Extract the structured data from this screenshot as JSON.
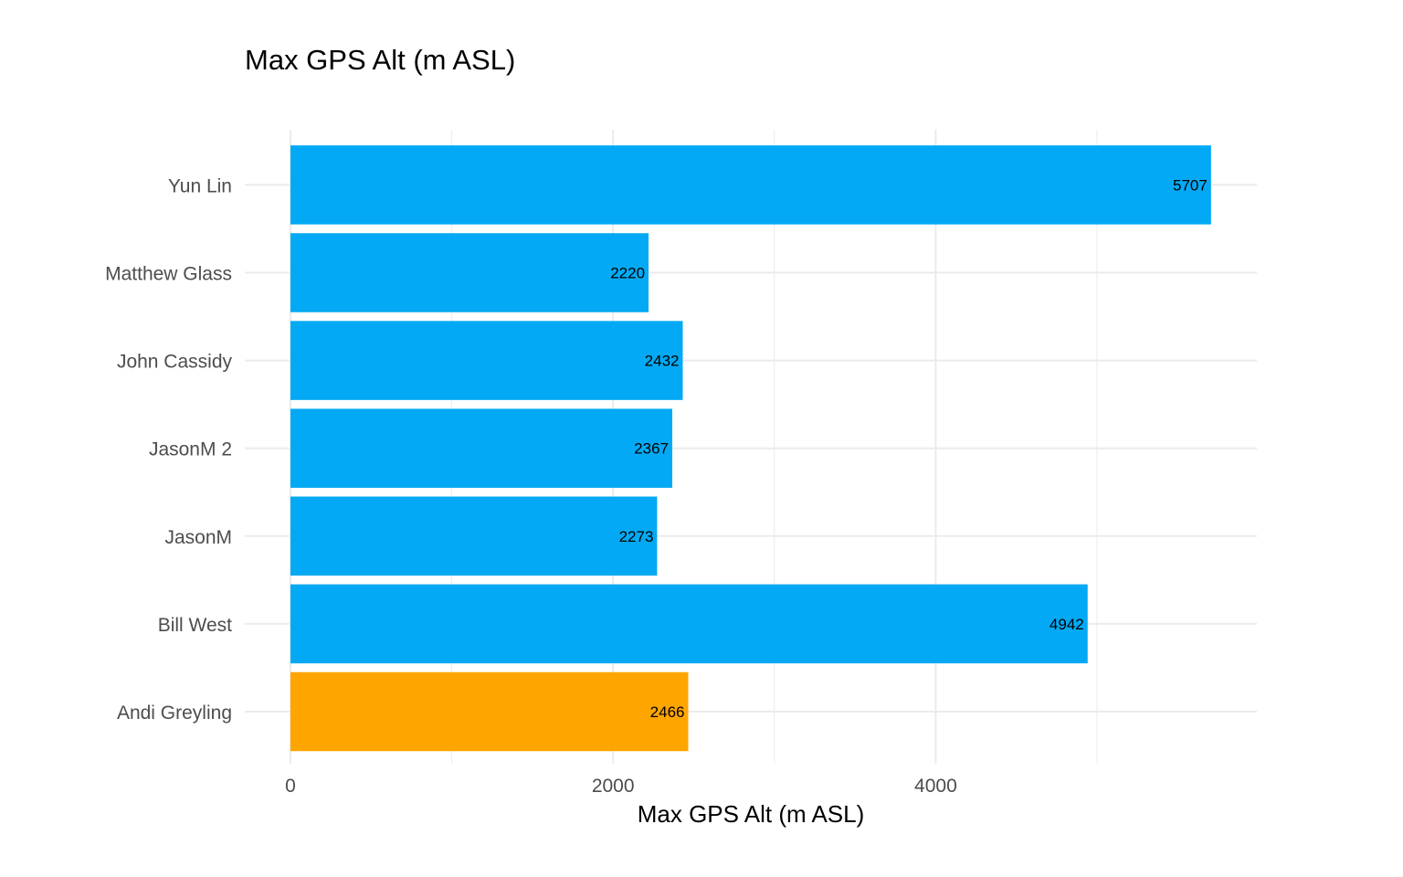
{
  "chart_data": {
    "type": "bar",
    "orientation": "horizontal",
    "title": "Max GPS Alt (m ASL)",
    "xlabel": "Max GPS Alt (m ASL)",
    "ylabel": "",
    "categories": [
      "Andi Greyling",
      "Bill West",
      "JasonM",
      "JasonM 2",
      "John Cassidy",
      "Matthew  Glass",
      "Yun Lin"
    ],
    "values": [
      2466,
      4942,
      2273,
      2367,
      2432,
      2220,
      5707
    ],
    "bar_colors": [
      "#FFA500",
      "#03A9F4",
      "#03A9F4",
      "#03A9F4",
      "#03A9F4",
      "#03A9F4",
      "#03A9F4"
    ],
    "data_labels": [
      "2466",
      "4942",
      "2273",
      "2367",
      "2432",
      "2220",
      "5707"
    ],
    "xlim": [
      0,
      5990
    ],
    "x_ticks": [
      0,
      2000,
      4000
    ],
    "x_tick_labels": [
      "0",
      "2000",
      "4000"
    ],
    "x_minor_ticks": [
      1000,
      3000,
      5000
    ],
    "grid": true,
    "legend": "none"
  }
}
